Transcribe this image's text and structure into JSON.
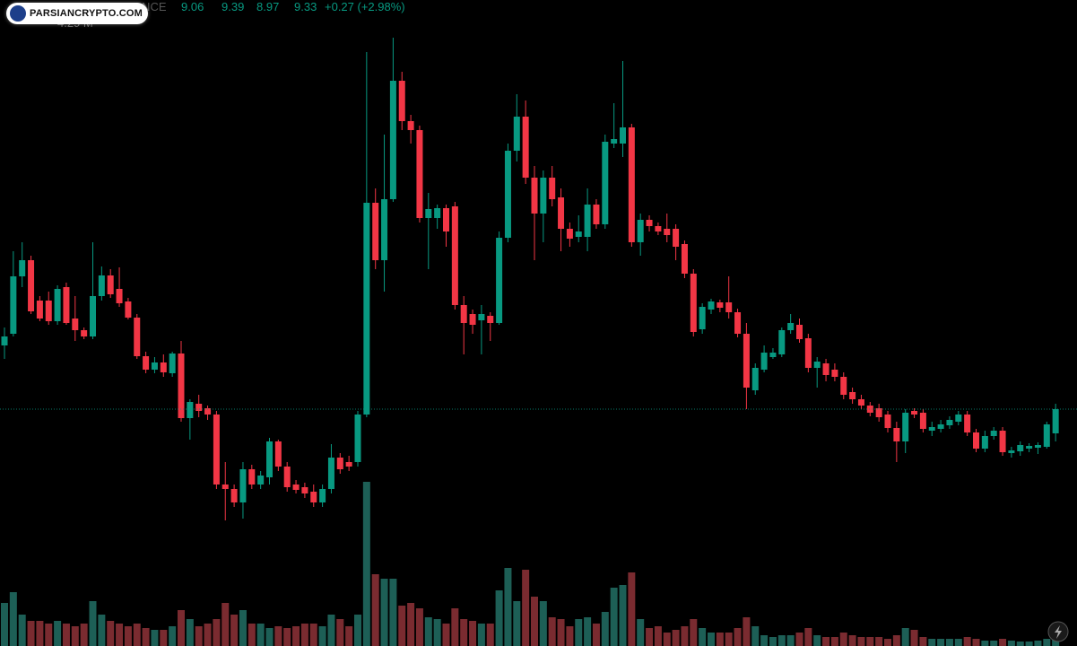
{
  "chart_data": {
    "type": "candlestick",
    "exchange": "NANCE",
    "change": "+0.27 (+2.98%)",
    "volume_readout": "4.29 M",
    "watermark": "PARSIANCRYPTO.COM",
    "up_color": "#089981",
    "down_color": "#f23645",
    "volume_up_color": "#1d5f56",
    "volume_down_color": "#7a2b30",
    "ylim": [
      6.69,
      13.89
    ],
    "vlim": [
      0,
      360
    ],
    "open": [
      10.04,
      10.17,
      10.81,
      10.99,
      10.54,
      10.54,
      10.31,
      10.69,
      10.34,
      10.21,
      10.14,
      10.59,
      10.82,
      10.67,
      10.53,
      10.35,
      9.92,
      9.77,
      9.85,
      9.73,
      9.95,
      9.23,
      9.39,
      9.34,
      9.27,
      8.49,
      8.44,
      8.29,
      8.66,
      8.49,
      8.57,
      8.97,
      8.69,
      8.49,
      8.46,
      8.41,
      8.29,
      8.44,
      8.79,
      8.74,
      8.74,
      9.27,
      11.63,
      10.99,
      11.67,
      12.99,
      12.54,
      12.44,
      11.46,
      11.46,
      11.57,
      11.59,
      10.49,
      10.39,
      10.32,
      10.37,
      10.29,
      11.24,
      12.21,
      12.59,
      11.91,
      11.51,
      11.91,
      11.69,
      11.34,
      11.25,
      11.25,
      11.61,
      11.39,
      12.29,
      12.29,
      12.47,
      11.19,
      11.44,
      11.37,
      11.34,
      11.34,
      11.17,
      10.84,
      10.22,
      10.44,
      10.52,
      10.52,
      10.41,
      10.17,
      9.54,
      9.77,
      9.91,
      9.94,
      10.21,
      10.27,
      10.12,
      9.79,
      9.84,
      9.77,
      9.69,
      9.52,
      9.44,
      9.37,
      9.34,
      9.27,
      9.12,
      8.97,
      9.31,
      9.29,
      9.09,
      9.11,
      9.15,
      9.19,
      9.27,
      9.07,
      8.89,
      9.03,
      9.09,
      8.84,
      8.86,
      8.89,
      8.9,
      8.91,
      9.06
    ],
    "high": [
      10.24,
      11.09,
      11.19,
      11.04,
      10.59,
      10.64,
      10.71,
      10.74,
      10.59,
      10.24,
      11.19,
      10.92,
      10.89,
      10.91,
      10.57,
      10.39,
      9.97,
      9.91,
      9.94,
      9.97,
      10.09,
      9.44,
      9.49,
      9.37,
      9.31,
      8.74,
      8.49,
      8.74,
      8.71,
      8.64,
      9.01,
      8.99,
      8.74,
      8.54,
      8.51,
      8.49,
      8.49,
      8.94,
      8.84,
      8.81,
      9.31,
      13.31,
      11.79,
      12.39,
      13.47,
      13.09,
      12.61,
      12.49,
      11.74,
      11.61,
      11.61,
      11.64,
      10.59,
      10.44,
      10.49,
      10.41,
      11.31,
      12.29,
      12.84,
      12.77,
      12.04,
      11.99,
      12.04,
      11.79,
      11.41,
      11.49,
      11.79,
      11.67,
      12.39,
      12.74,
      13.21,
      12.51,
      11.51,
      11.49,
      11.41,
      11.51,
      11.39,
      11.21,
      10.89,
      10.51,
      10.56,
      10.55,
      10.81,
      10.45,
      10.29,
      9.84,
      10.04,
      10.01,
      10.24,
      10.39,
      10.34,
      10.17,
      9.91,
      9.89,
      9.84,
      9.74,
      9.57,
      9.49,
      9.41,
      9.39,
      9.31,
      9.19,
      9.33,
      9.34,
      9.33,
      9.19,
      9.21,
      9.25,
      9.31,
      9.31,
      9.11,
      9.09,
      9.13,
      9.13,
      8.91,
      8.97,
      8.95,
      8.96,
      9.19,
      9.39
    ],
    "low": [
      9.89,
      10.14,
      10.69,
      10.39,
      10.31,
      10.27,
      10.27,
      10.27,
      10.09,
      10.11,
      10.11,
      10.54,
      10.57,
      10.47,
      10.33,
      9.89,
      9.73,
      9.73,
      9.69,
      9.69,
      9.19,
      8.99,
      9.24,
      9.21,
      8.44,
      8.09,
      8.24,
      8.11,
      8.44,
      8.44,
      8.49,
      8.64,
      8.41,
      8.39,
      8.34,
      8.24,
      8.24,
      8.39,
      8.61,
      8.64,
      8.69,
      9.24,
      10.89,
      10.64,
      11.64,
      12.44,
      12.29,
      11.41,
      10.89,
      11.34,
      11.14,
      10.44,
      9.94,
      10.17,
      9.94,
      10.09,
      10.27,
      11.19,
      12.09,
      11.84,
      10.99,
      11.19,
      11.59,
      11.09,
      11.14,
      11.19,
      11.09,
      11.34,
      11.34,
      12.24,
      12.14,
      11.14,
      11.04,
      11.31,
      11.27,
      11.19,
      10.99,
      10.79,
      10.14,
      10.17,
      10.39,
      10.41,
      10.34,
      10.13,
      9.33,
      9.49,
      9.74,
      9.89,
      9.91,
      10.17,
      10.07,
      9.74,
      9.57,
      9.64,
      9.64,
      9.44,
      9.39,
      9.33,
      9.25,
      9.19,
      9.07,
      8.74,
      8.84,
      9.23,
      9.07,
      9.03,
      9.07,
      9.11,
      9.15,
      9.03,
      8.85,
      8.85,
      8.99,
      8.81,
      8.79,
      8.81,
      8.85,
      8.83,
      8.89,
      8.97
    ],
    "close": [
      10.14,
      10.81,
      10.99,
      10.42,
      10.34,
      10.31,
      10.67,
      10.29,
      10.21,
      10.14,
      10.59,
      10.82,
      10.61,
      10.51,
      10.35,
      9.92,
      9.77,
      9.85,
      9.74,
      9.95,
      9.23,
      9.41,
      9.31,
      9.27,
      8.49,
      8.44,
      8.29,
      8.66,
      8.49,
      8.59,
      8.97,
      8.69,
      8.46,
      8.43,
      8.39,
      8.29,
      8.44,
      8.79,
      8.66,
      8.69,
      9.27,
      11.63,
      10.99,
      11.67,
      12.99,
      12.54,
      12.44,
      11.46,
      11.56,
      11.57,
      11.31,
      10.49,
      10.29,
      10.27,
      10.39,
      10.29,
      11.24,
      12.21,
      12.59,
      11.91,
      11.51,
      11.91,
      11.67,
      11.34,
      11.23,
      11.31,
      11.61,
      11.39,
      12.31,
      12.34,
      12.47,
      11.19,
      11.44,
      11.37,
      11.31,
      11.27,
      11.14,
      10.84,
      10.19,
      10.47,
      10.53,
      10.46,
      10.41,
      10.17,
      9.57,
      9.79,
      9.96,
      9.96,
      10.21,
      10.29,
      10.11,
      9.79,
      9.86,
      9.71,
      9.69,
      9.49,
      9.44,
      9.37,
      9.29,
      9.24,
      9.12,
      8.97,
      9.29,
      9.27,
      9.11,
      9.13,
      9.16,
      9.21,
      9.27,
      9.07,
      8.89,
      9.03,
      9.09,
      8.85,
      8.87,
      8.93,
      8.92,
      8.93,
      9.16,
      9.33
    ],
    "volume": [
      24,
      30,
      17.5,
      14,
      14,
      12.5,
      14,
      12.5,
      11,
      12.5,
      25,
      17.5,
      14,
      12.5,
      11,
      12.5,
      10,
      9,
      9,
      11,
      20,
      15,
      11,
      12.5,
      15,
      24,
      17.5,
      20,
      12.5,
      12.5,
      10,
      11,
      10,
      11,
      12.5,
      12.5,
      11,
      17.5,
      15,
      11,
      17.5,
      91.5,
      40,
      37.5,
      37.5,
      22.5,
      24,
      21,
      16,
      15,
      12.5,
      21,
      15,
      14,
      12.5,
      12.5,
      31,
      43.5,
      25,
      42.5,
      27.5,
      25,
      16,
      15,
      11,
      15,
      16,
      12.5,
      19,
      32.5,
      34,
      41,
      15,
      10,
      11,
      7.5,
      9,
      11,
      15,
      10,
      7.5,
      7.5,
      7.5,
      10,
      16,
      11,
      6,
      5,
      6,
      6,
      7.5,
      10,
      6,
      5,
      5,
      7.5,
      6,
      5,
      5,
      5,
      4,
      6,
      10,
      9,
      5,
      4,
      4,
      4,
      4,
      5,
      4,
      3,
      3,
      4,
      3,
      2.5,
      2.5,
      3,
      4,
      4.29
    ]
  }
}
